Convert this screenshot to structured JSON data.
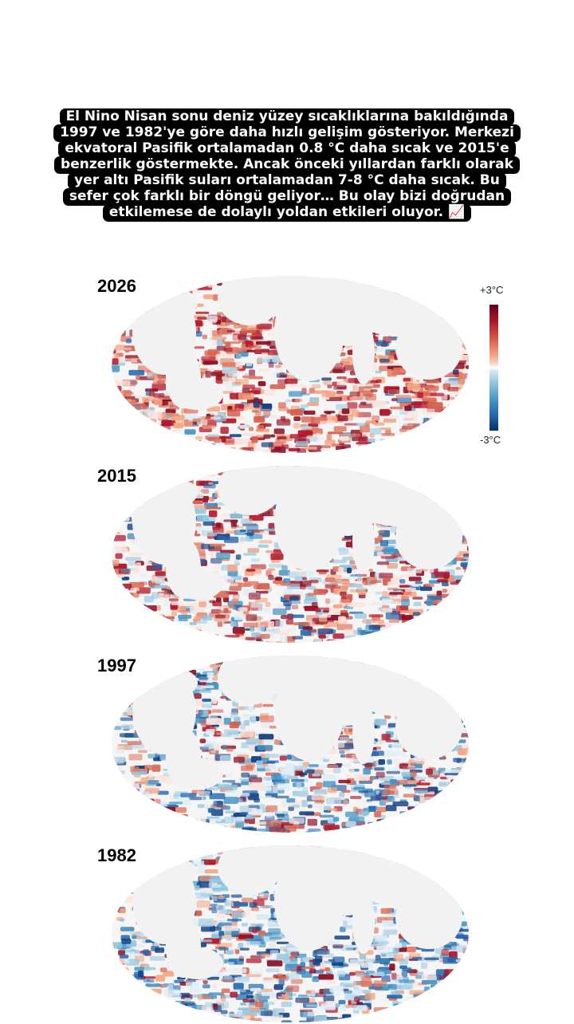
{
  "caption": {
    "lines": [
      "El Nino Nisan sonu deniz yüzey sıcaklıklarına bakıldığında",
      "1997 ve 1982'ye göre daha hızlı gelişim gösteriyor. Merkezi",
      "ekvatoral Pasifik ortalamadan 0.8 °C daha sıcak ve 2015'e",
      "benzerlik göstermekte. Ancak önceki yıllardan farklı olarak",
      "yer altı Pasifik suları ortalamadan 7-8 °C daha sıcak. Bu",
      "sefer çok farklı bir döngü geliyor… Bu olay bizi doğrudan",
      "etkilemese de dolaylı yoldan etkileri oluyor. 📈"
    ]
  },
  "legend": {
    "max_label": "+3°C",
    "min_label": "-3°C",
    "warm_color": "#b2182b",
    "cool_color": "#2166ac"
  },
  "maps": [
    {
      "year": "2026",
      "warm_share": 0.85,
      "intensity": 1.0
    },
    {
      "year": "2015",
      "warm_share": 0.62,
      "intensity": 0.75
    },
    {
      "year": "1997",
      "warm_share": 0.35,
      "intensity": 0.7
    },
    {
      "year": "1982",
      "warm_share": 0.25,
      "intensity": 0.8
    }
  ]
}
